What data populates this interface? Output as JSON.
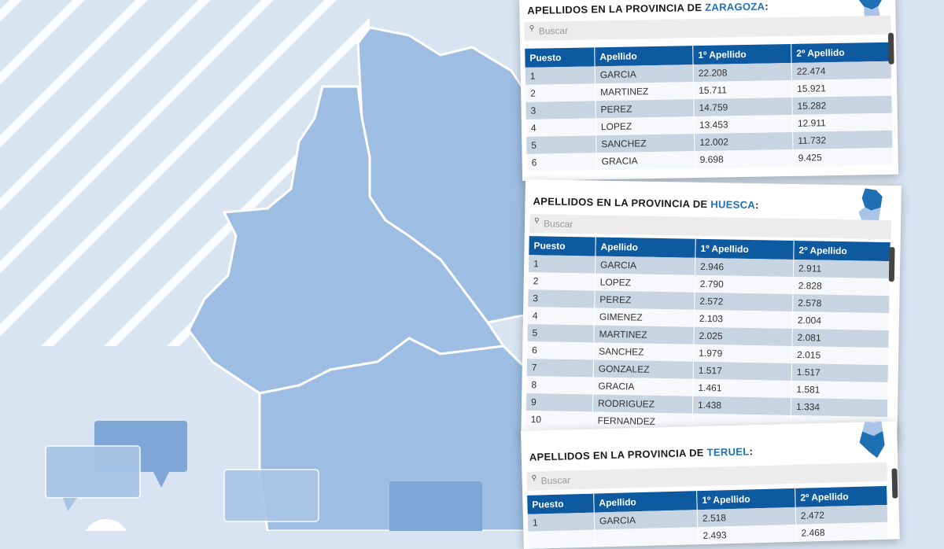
{
  "search_placeholder": "Buscar",
  "columns": {
    "rank": "Puesto",
    "surname": "Apellido",
    "first": "1º Apellido",
    "second": "2º Apellido"
  },
  "cards": {
    "zaragoza": {
      "title_prefix": "APELLIDOS EN LA PROVINCIA DE",
      "province": "ZARAGOZA",
      "suffix": ":",
      "rows": [
        [
          "1",
          "GARCIA",
          "22.208",
          "22.474"
        ],
        [
          "2",
          "MARTINEZ",
          "15.711",
          "15.921"
        ],
        [
          "3",
          "PEREZ",
          "14.759",
          "15.282"
        ],
        [
          "4",
          "LOPEZ",
          "13.453",
          "12.911"
        ],
        [
          "5",
          "SANCHEZ",
          "12.002",
          "11.732"
        ],
        [
          "6",
          "GRACIA",
          "9.698",
          "9.425"
        ]
      ]
    },
    "huesca": {
      "title_prefix": "APELLIDOS EN LA PROVINCIA DE",
      "province": "HUESCA",
      "suffix": ":",
      "rows": [
        [
          "1",
          "GARCIA",
          "2.946",
          "2.911"
        ],
        [
          "2",
          "LOPEZ",
          "2.790",
          "2.828"
        ],
        [
          "3",
          "PEREZ",
          "2.572",
          "2.578"
        ],
        [
          "4",
          "GIMENEZ",
          "2.103",
          "2.004"
        ],
        [
          "5",
          "MARTINEZ",
          "2.025",
          "2.081"
        ],
        [
          "6",
          "SANCHEZ",
          "1.979",
          "2.015"
        ],
        [
          "7",
          "GONZALEZ",
          "1.517",
          "1.517"
        ],
        [
          "8",
          "GRACIA",
          "1.461",
          "1.581"
        ],
        [
          "9",
          "RODRIGUEZ",
          "1.438",
          "1.334"
        ],
        [
          "10",
          "FERNANDEZ",
          "",
          ""
        ]
      ]
    },
    "teruel": {
      "title_prefix": "APELLIDOS EN LA PROVINCIA DE",
      "province": "TERUEL",
      "suffix": ":",
      "rows": [
        [
          "1",
          "GARCIA",
          "2.518",
          "2.472"
        ],
        [
          "",
          "",
          "2.493",
          "2.468"
        ]
      ]
    }
  }
}
